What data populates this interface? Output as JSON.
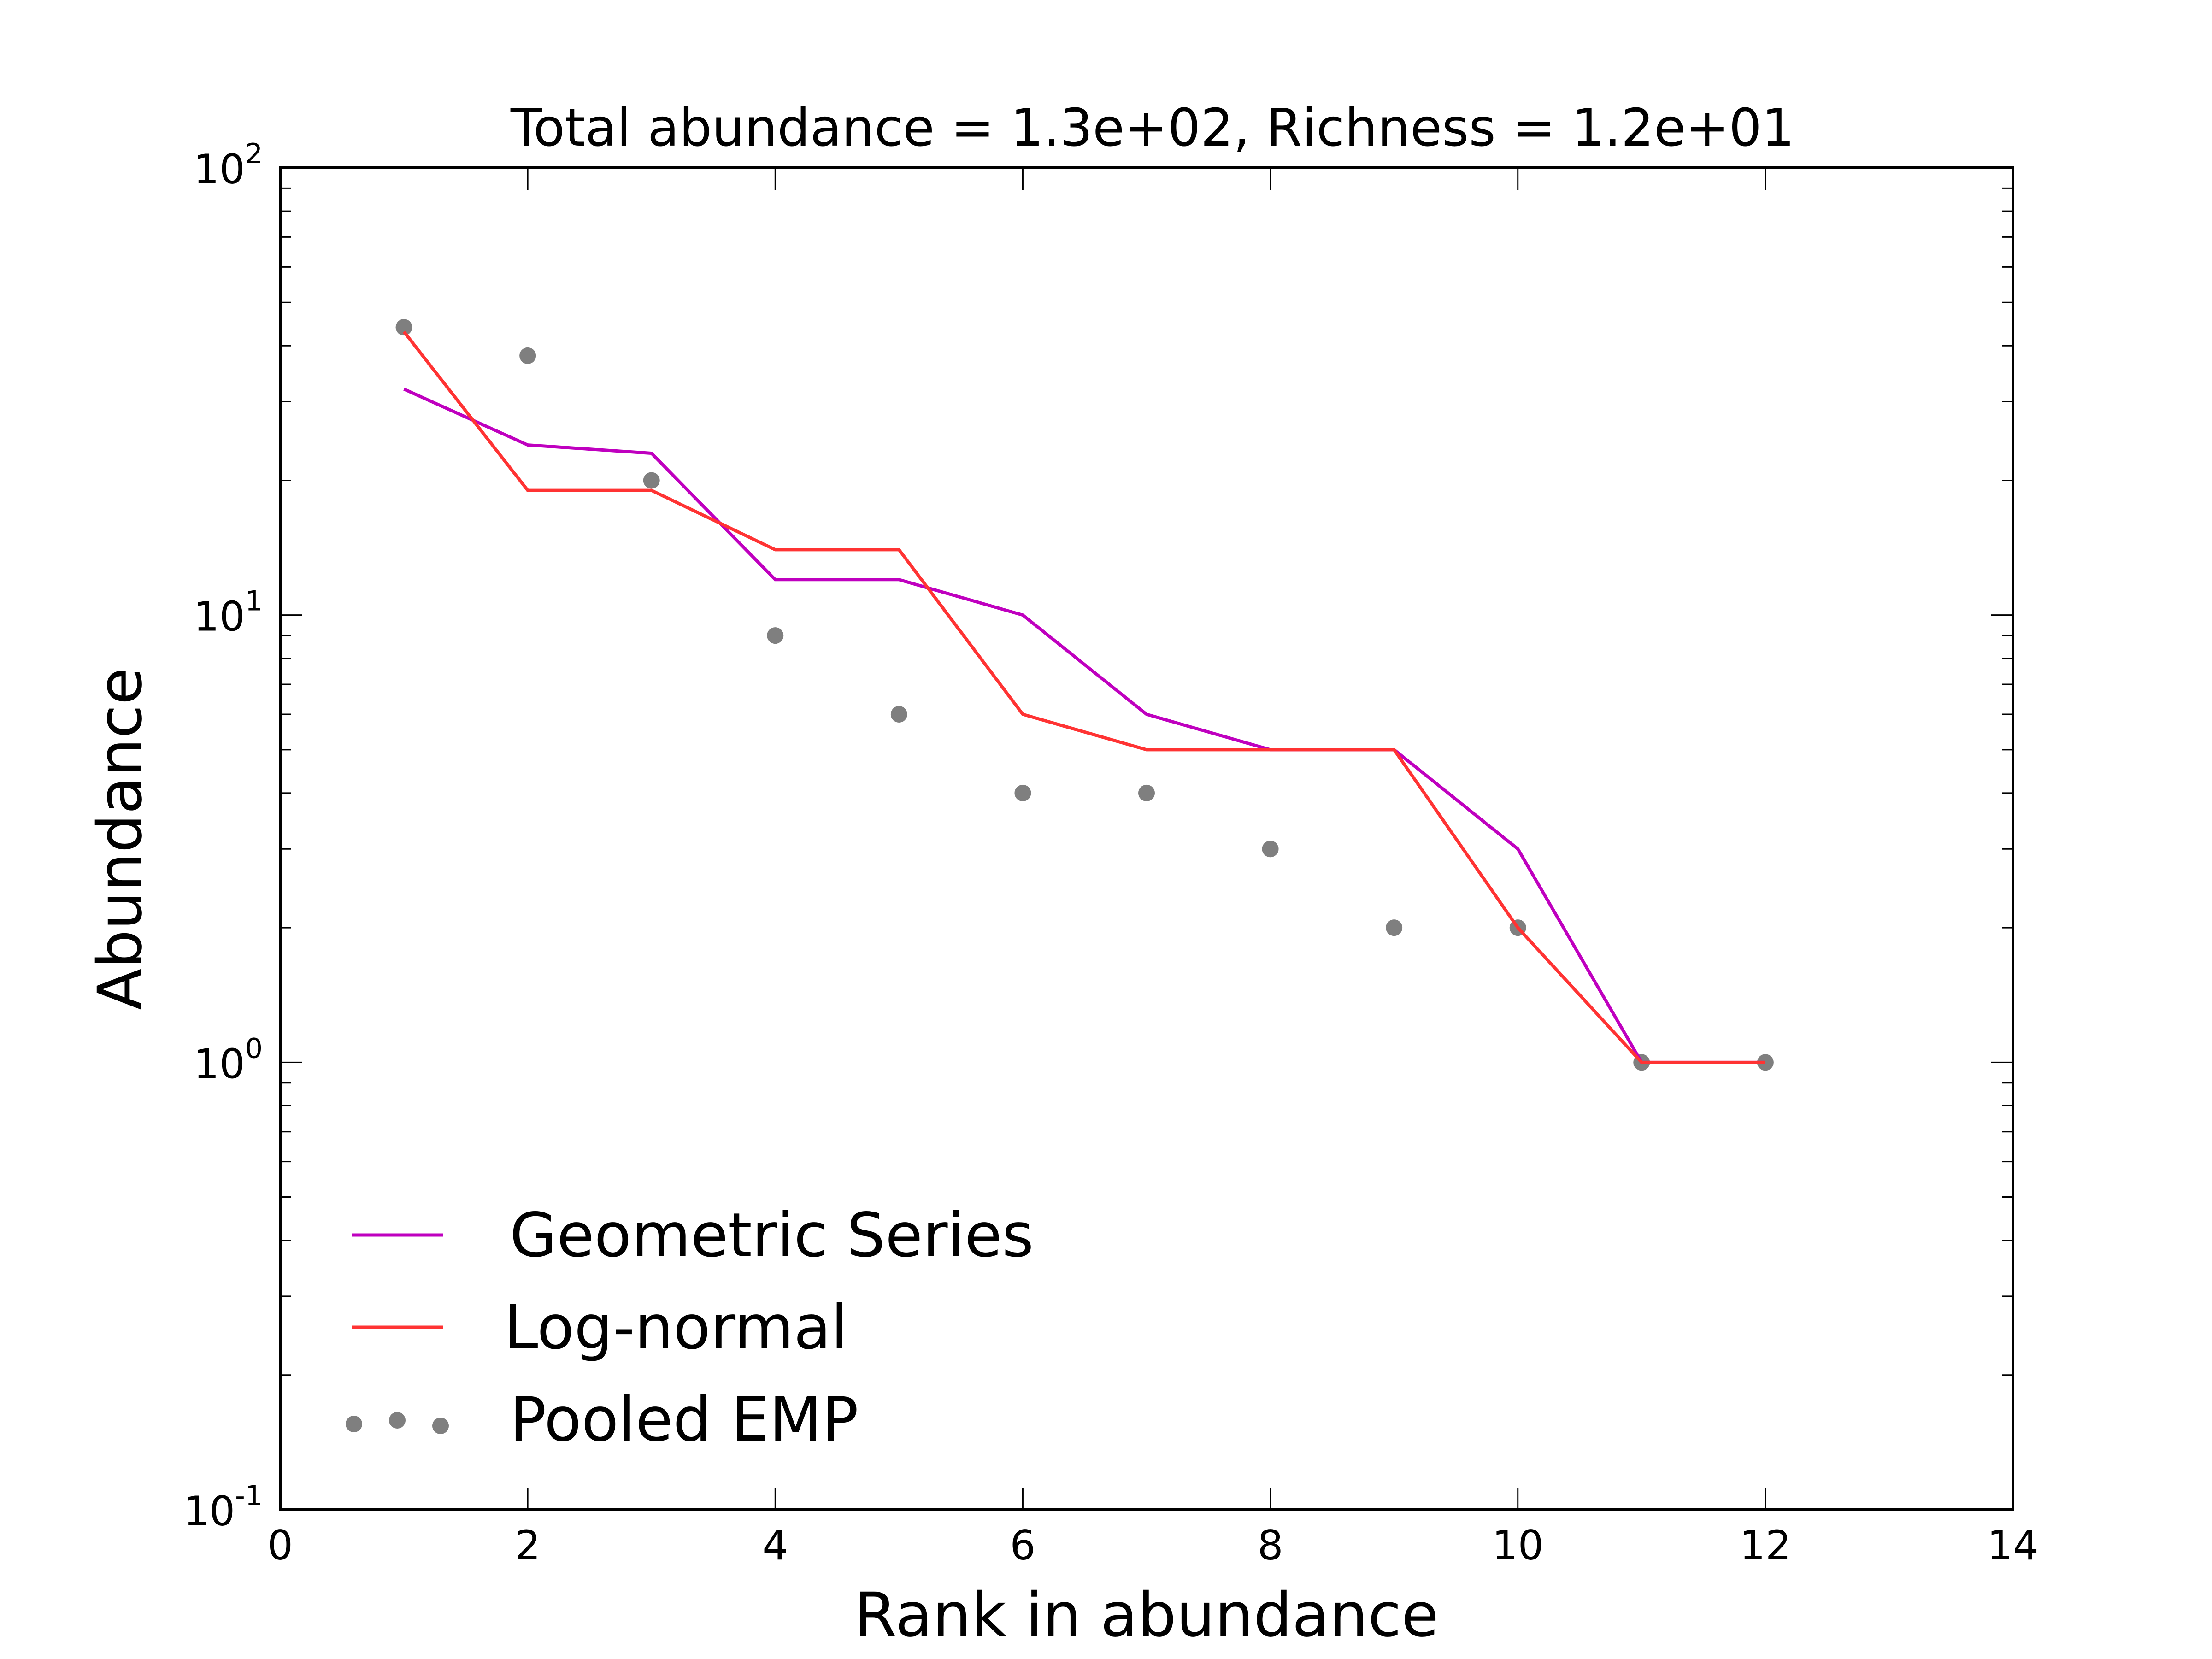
{
  "chart_data": {
    "type": "line",
    "title": "Total abundance = 1.3e+02, Richness = 1.2e+01",
    "xlabel": "Rank in abundance",
    "ylabel": "Abundance",
    "xlim": [
      0,
      14
    ],
    "ylim": [
      0.1,
      100
    ],
    "yscale": "log",
    "grid": false,
    "legend_position": "lower-left",
    "x_ticks": [
      {
        "value": 0,
        "label": "0"
      },
      {
        "value": 2,
        "label": "2"
      },
      {
        "value": 4,
        "label": "4"
      },
      {
        "value": 6,
        "label": "6"
      },
      {
        "value": 8,
        "label": "8"
      },
      {
        "value": 10,
        "label": "10"
      },
      {
        "value": 12,
        "label": "12"
      },
      {
        "value": 14,
        "label": "14"
      }
    ],
    "y_ticks": [
      {
        "value": 0.1,
        "base": "10",
        "exponent": "-1"
      },
      {
        "value": 1,
        "base": "10",
        "exponent": "0"
      },
      {
        "value": 10,
        "base": "10",
        "exponent": "1"
      },
      {
        "value": 100,
        "base": "10",
        "exponent": "2"
      }
    ],
    "x": [
      1,
      2,
      3,
      4,
      5,
      6,
      7,
      8,
      9,
      10,
      11,
      12
    ],
    "series": [
      {
        "name": "Geometric Series",
        "kind": "line",
        "color": "#bf00bf",
        "values": [
          32,
          24,
          23,
          12,
          12,
          10,
          6,
          5,
          5,
          3,
          1,
          1
        ]
      },
      {
        "name": "Log-normal",
        "kind": "line",
        "color": "#ff3333",
        "values": [
          43,
          19,
          19,
          14,
          14,
          6,
          5,
          5,
          5,
          2,
          1,
          1
        ]
      },
      {
        "name": "Pooled EMP",
        "kind": "scatter",
        "color": "#7f7f7f",
        "values": [
          44,
          38,
          20,
          9,
          6,
          4,
          4,
          3,
          2,
          2,
          1,
          1
        ]
      }
    ]
  }
}
